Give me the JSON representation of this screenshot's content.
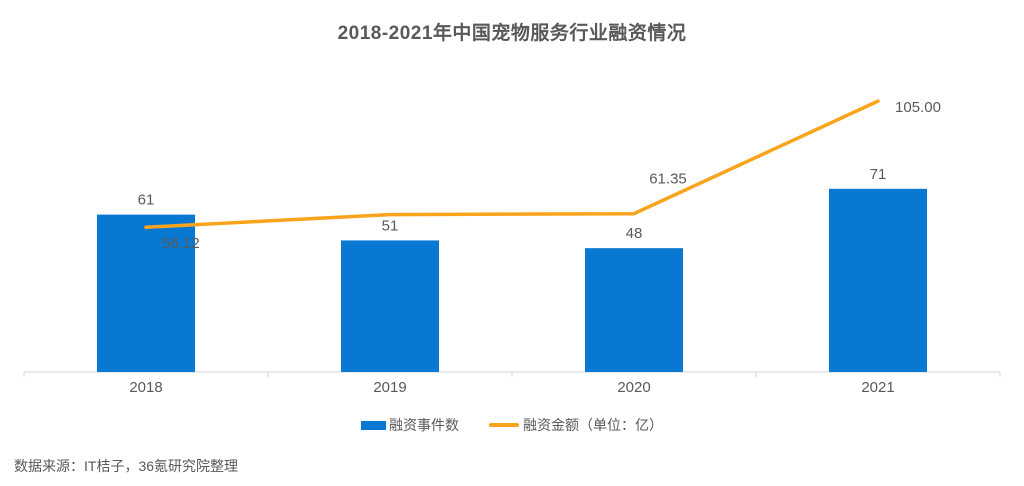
{
  "source": "数据来源：IT桔子，36氪研究院整理",
  "colors": {
    "bar": "#0978d2",
    "line": "#faa41b",
    "text": "#595959",
    "axis": "#d4d4d4"
  },
  "chart_data": {
    "type": "bar+line combo",
    "title": "2018-2021年中国宠物服务行业融资情况",
    "categories": [
      "2018",
      "2019",
      "2020",
      "2021"
    ],
    "series": [
      {
        "name": "融资事件数",
        "type": "bar",
        "color": "#0978d2",
        "values": [
          61,
          51,
          48,
          71
        ],
        "labels": [
          "61",
          "51",
          "48",
          "71"
        ]
      },
      {
        "name": "融资金额（单位：亿）",
        "type": "line",
        "color": "#faa41b",
        "values": [
          56.12,
          61,
          61.35,
          105.0
        ],
        "labels": [
          "56.12",
          "",
          "61.35",
          "105.00"
        ]
      }
    ],
    "xlabel": "",
    "ylabel": "",
    "ylim": [
      0,
      133
    ],
    "grid": false,
    "y_axis_shown": false,
    "legend_position": "bottom"
  }
}
